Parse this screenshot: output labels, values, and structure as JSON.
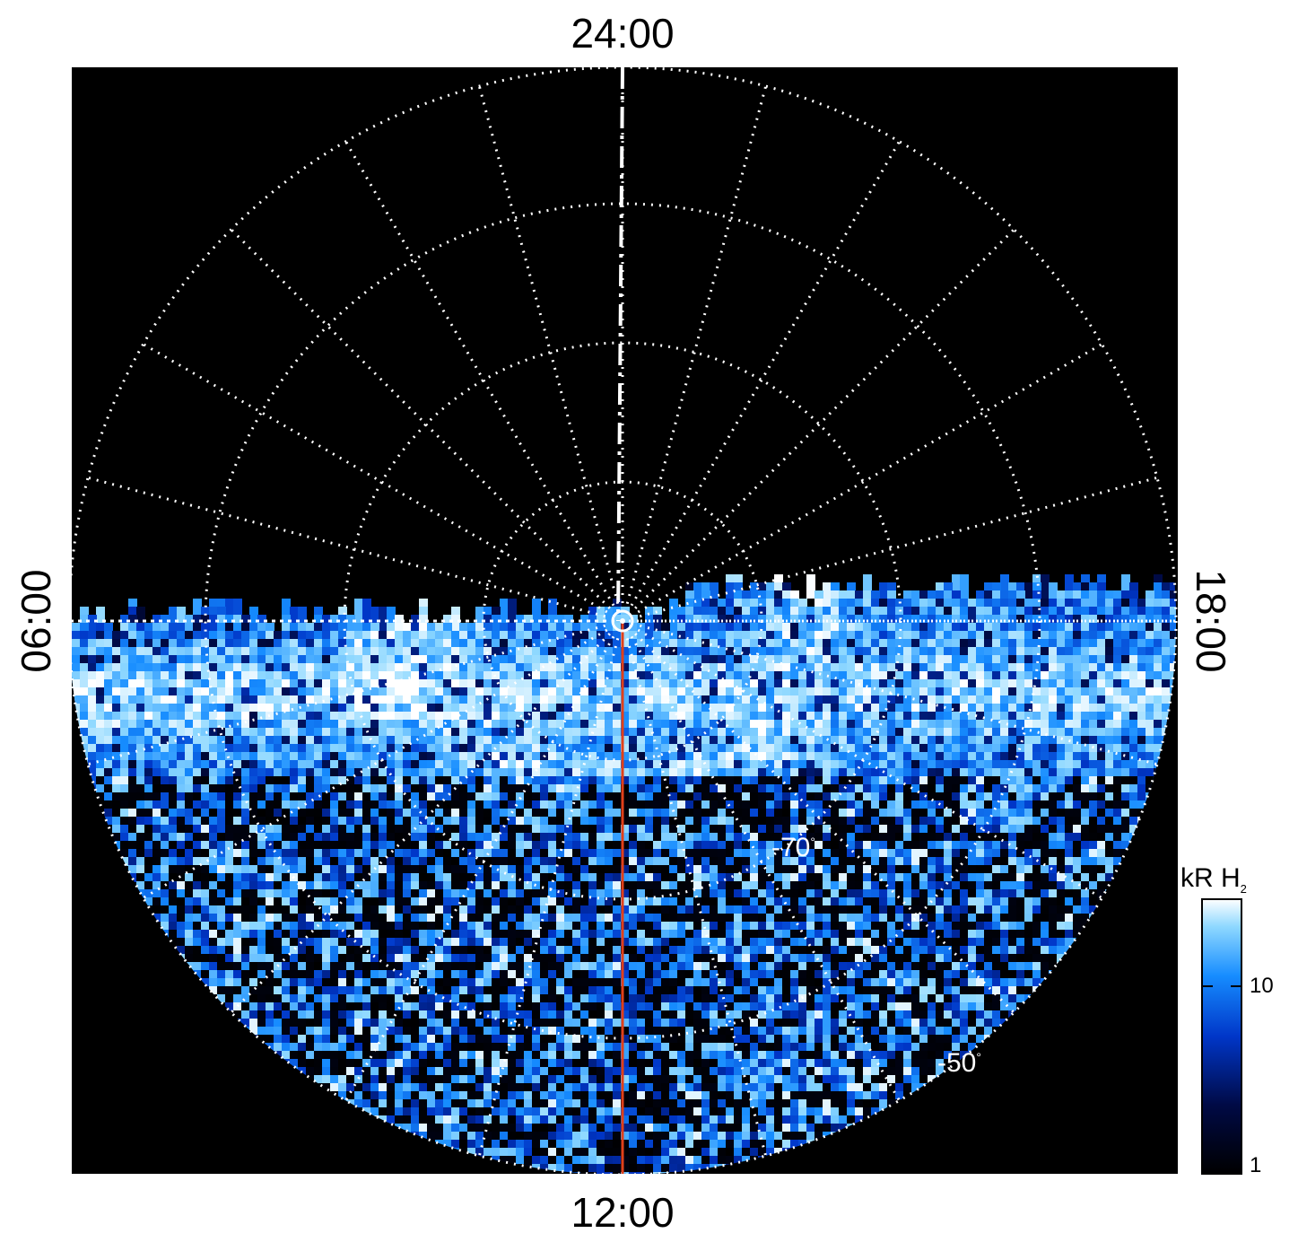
{
  "image_type": "polar projection of ultraviolet auroral H2 emission, displayed on a polar grid",
  "local_time_labels": {
    "top": "24:00",
    "bottom": "12:00",
    "left": "06:00",
    "right": "18:00"
  },
  "latitude_labels": {
    "inner": "-70",
    "outer": "-50",
    "degree_symbol": "°"
  },
  "colorbar": {
    "title_main": "kR H",
    "title_sub": "2",
    "ticks": [
      "10",
      "1"
    ],
    "scale": "log",
    "range": [
      1,
      25
    ]
  },
  "colors": {
    "background": "#000000",
    "grid": "#ffffff",
    "meridian_line": "#e0401a",
    "colormap": [
      "#000000",
      "#000a45",
      "#0036c8",
      "#168cff",
      "#8ed8ff",
      "#ffffff"
    ]
  },
  "grid": {
    "style": "dotted",
    "longitude_step_deg": 15,
    "latitude_rings": 5
  },
  "emission": {
    "observed_region": "dayside hemisphere, 06:00 to 18:00 through 12:00",
    "oval_band": "bright aurora band near the 06:00-18:00 line, brightest toward the dawn side"
  }
}
